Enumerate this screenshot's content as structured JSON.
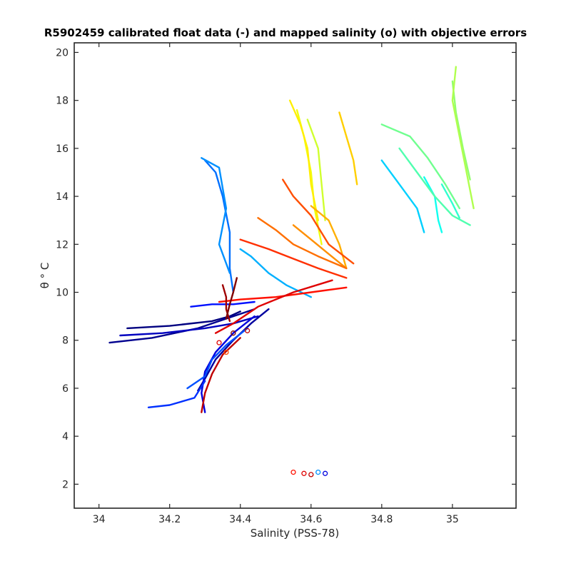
{
  "chart_data": {
    "type": "line",
    "title": "R5902459 calibrated float data (-) and mapped salinity (o) with objective errors",
    "xlabel": "Salinity (PSS-78)",
    "ylabel": "θ ° C",
    "xlim": [
      33.93,
      35.18
    ],
    "ylim": [
      1.0,
      20.4
    ],
    "x_ticks": [
      34,
      34.2,
      34.4,
      34.6,
      34.8,
      35
    ],
    "x_tick_labels": [
      "34",
      "34.2",
      "34.4",
      "34.6",
      "34.8",
      "35"
    ],
    "y_ticks": [
      2,
      4,
      6,
      8,
      10,
      12,
      14,
      16,
      18,
      20
    ],
    "y_tick_labels": [
      "2",
      "4",
      "6",
      "8",
      "10",
      "12",
      "14",
      "16",
      "18",
      "20"
    ],
    "grid": false,
    "legend": "none",
    "colormap": "jet",
    "series": [
      {
        "color": "#000080",
        "points": [
          [
            34.08,
            8.5
          ],
          [
            34.2,
            8.6
          ],
          [
            34.32,
            8.8
          ],
          [
            34.37,
            9.0
          ],
          [
            34.4,
            9.2
          ]
        ]
      },
      {
        "color": "#00008f",
        "points": [
          [
            34.03,
            7.9
          ],
          [
            34.15,
            8.1
          ],
          [
            34.28,
            8.5
          ],
          [
            34.36,
            8.9
          ],
          [
            34.44,
            9.3
          ]
        ]
      },
      {
        "color": "#00009f",
        "points": [
          [
            34.28,
            5.9
          ],
          [
            34.3,
            6.4
          ],
          [
            34.33,
            7.2
          ],
          [
            34.38,
            8.0
          ],
          [
            34.43,
            8.7
          ],
          [
            34.48,
            9.3
          ]
        ]
      },
      {
        "color": "#0000c0",
        "points": [
          [
            34.06,
            8.2
          ],
          [
            34.18,
            8.3
          ],
          [
            34.3,
            8.5
          ],
          [
            34.38,
            8.7
          ],
          [
            34.45,
            9.0
          ]
        ]
      },
      {
        "color": "#0000df",
        "points": [
          [
            34.3,
            5.0
          ],
          [
            34.29,
            5.8
          ],
          [
            34.3,
            6.7
          ],
          [
            34.33,
            7.5
          ],
          [
            34.38,
            8.3
          ],
          [
            34.44,
            9.0
          ]
        ]
      },
      {
        "color": "#0010ff",
        "points": [
          [
            34.26,
            9.4
          ],
          [
            34.32,
            9.5
          ],
          [
            34.38,
            9.5
          ],
          [
            34.44,
            9.6
          ]
        ]
      },
      {
        "color": "#0030ff",
        "points": [
          [
            34.14,
            5.2
          ],
          [
            34.2,
            5.3
          ],
          [
            34.27,
            5.6
          ],
          [
            34.3,
            6.3
          ]
        ]
      },
      {
        "color": "#0050ff",
        "points": [
          [
            34.25,
            6.0
          ],
          [
            34.3,
            6.5
          ],
          [
            34.32,
            7.2
          ],
          [
            34.36,
            7.8
          ],
          [
            34.42,
            8.5
          ]
        ]
      },
      {
        "color": "#0070ff",
        "points": [
          [
            34.3,
            15.5
          ],
          [
            34.33,
            15.0
          ],
          [
            34.35,
            14.0
          ],
          [
            34.37,
            12.5
          ],
          [
            34.37,
            11.0
          ],
          [
            34.38,
            10.0
          ]
        ]
      },
      {
        "color": "#0090ff",
        "points": [
          [
            34.29,
            15.6
          ],
          [
            34.34,
            15.2
          ],
          [
            34.36,
            13.5
          ],
          [
            34.34,
            12.0
          ],
          [
            34.37,
            10.8
          ]
        ]
      },
      {
        "color": "#00b0ff",
        "points": [
          [
            34.4,
            11.8
          ],
          [
            34.43,
            11.5
          ],
          [
            34.48,
            10.8
          ],
          [
            34.53,
            10.3
          ],
          [
            34.6,
            9.8
          ]
        ]
      },
      {
        "color": "#00d0ff",
        "points": [
          [
            34.8,
            15.5
          ],
          [
            34.85,
            14.5
          ],
          [
            34.9,
            13.5
          ],
          [
            34.92,
            12.5
          ]
        ]
      },
      {
        "color": "#10ffef",
        "points": [
          [
            34.92,
            14.8
          ],
          [
            34.95,
            14.0
          ],
          [
            34.96,
            13.0
          ],
          [
            34.97,
            12.5
          ]
        ]
      },
      {
        "color": "#30ffcf",
        "points": [
          [
            34.97,
            14.5
          ],
          [
            35.0,
            13.7
          ],
          [
            35.02,
            13.1
          ]
        ]
      },
      {
        "color": "#50ffaf",
        "points": [
          [
            34.85,
            16.0
          ],
          [
            34.9,
            15.0
          ],
          [
            34.95,
            14.0
          ],
          [
            35.0,
            13.2
          ],
          [
            35.05,
            12.8
          ]
        ]
      },
      {
        "color": "#70ff8f",
        "points": [
          [
            34.8,
            17.0
          ],
          [
            34.88,
            16.5
          ],
          [
            34.93,
            15.6
          ],
          [
            34.98,
            14.5
          ],
          [
            35.02,
            13.5
          ]
        ]
      },
      {
        "color": "#90ff6f",
        "points": [
          [
            35.0,
            18.8
          ],
          [
            35.01,
            17.5
          ],
          [
            35.03,
            16.0
          ],
          [
            35.05,
            14.7
          ]
        ]
      },
      {
        "color": "#b0ff4f",
        "points": [
          [
            35.01,
            19.4
          ],
          [
            35.0,
            18.0
          ],
          [
            35.02,
            16.5
          ],
          [
            35.04,
            15.0
          ],
          [
            35.06,
            13.5
          ]
        ]
      },
      {
        "color": "#d0ff2f",
        "points": [
          [
            34.59,
            17.2
          ],
          [
            34.62,
            16.0
          ],
          [
            34.63,
            14.5
          ],
          [
            34.64,
            13.0
          ]
        ]
      },
      {
        "color": "#efff10",
        "points": [
          [
            34.56,
            17.6
          ],
          [
            34.58,
            16.5
          ],
          [
            34.6,
            15.0
          ],
          [
            34.61,
            13.5
          ],
          [
            34.63,
            12.0
          ]
        ]
      },
      {
        "color": "#ffef00",
        "points": [
          [
            34.54,
            18.0
          ],
          [
            34.57,
            17.0
          ],
          [
            34.59,
            16.0
          ],
          [
            34.6,
            14.5
          ],
          [
            34.62,
            13.0
          ]
        ]
      },
      {
        "color": "#ffcf00",
        "points": [
          [
            34.68,
            17.5
          ],
          [
            34.7,
            16.5
          ],
          [
            34.72,
            15.5
          ],
          [
            34.73,
            14.5
          ]
        ]
      },
      {
        "color": "#ffaf00",
        "points": [
          [
            34.6,
            13.6
          ],
          [
            34.65,
            13.0
          ],
          [
            34.68,
            12.0
          ],
          [
            34.7,
            11.0
          ]
        ]
      },
      {
        "color": "#ff8f00",
        "points": [
          [
            34.55,
            12.8
          ],
          [
            34.6,
            12.2
          ],
          [
            34.65,
            11.6
          ],
          [
            34.7,
            11.0
          ]
        ]
      },
      {
        "color": "#ff6f00",
        "points": [
          [
            34.45,
            13.1
          ],
          [
            34.5,
            12.6
          ],
          [
            34.55,
            12.0
          ],
          [
            34.62,
            11.5
          ],
          [
            34.7,
            11.0
          ]
        ]
      },
      {
        "color": "#ff4f00",
        "points": [
          [
            34.52,
            14.7
          ],
          [
            34.55,
            14.0
          ],
          [
            34.6,
            13.2
          ],
          [
            34.65,
            12.0
          ],
          [
            34.72,
            11.2
          ]
        ]
      },
      {
        "color": "#ff2f00",
        "points": [
          [
            34.4,
            12.2
          ],
          [
            34.48,
            11.8
          ],
          [
            34.55,
            11.4
          ],
          [
            34.62,
            11.0
          ],
          [
            34.7,
            10.6
          ]
        ]
      },
      {
        "color": "#ff1000",
        "points": [
          [
            34.34,
            9.6
          ],
          [
            34.4,
            9.7
          ],
          [
            34.5,
            9.8
          ],
          [
            34.6,
            10.0
          ],
          [
            34.7,
            10.2
          ]
        ]
      },
      {
        "color": "#df0000",
        "points": [
          [
            34.33,
            8.3
          ],
          [
            34.38,
            8.7
          ],
          [
            34.45,
            9.4
          ],
          [
            34.55,
            10.0
          ],
          [
            34.66,
            10.5
          ]
        ]
      },
      {
        "color": "#bf0000",
        "points": [
          [
            34.29,
            5.0
          ],
          [
            34.3,
            5.8
          ],
          [
            34.32,
            6.6
          ],
          [
            34.35,
            7.4
          ],
          [
            34.4,
            8.1
          ]
        ]
      },
      {
        "color": "#9f0000",
        "points": [
          [
            34.35,
            10.3
          ],
          [
            34.36,
            9.8
          ],
          [
            34.36,
            9.3
          ],
          [
            34.37,
            8.8
          ]
        ]
      },
      {
        "color": "#800000",
        "points": [
          [
            34.39,
            10.6
          ],
          [
            34.38,
            10.0
          ],
          [
            34.37,
            9.5
          ],
          [
            34.36,
            8.9
          ]
        ]
      }
    ],
    "mapped_points": [
      {
        "x": 34.55,
        "y": 2.5,
        "color": "#ff1000"
      },
      {
        "x": 34.58,
        "y": 2.45,
        "color": "#df0000"
      },
      {
        "x": 34.6,
        "y": 2.4,
        "color": "#bf0000"
      },
      {
        "x": 34.62,
        "y": 2.5,
        "color": "#0090ff"
      },
      {
        "x": 34.64,
        "y": 2.45,
        "color": "#0000df"
      },
      {
        "x": 34.34,
        "y": 7.9,
        "color": "#df0000"
      },
      {
        "x": 34.36,
        "y": 7.5,
        "color": "#ff4f00"
      },
      {
        "x": 34.38,
        "y": 8.3,
        "color": "#800000"
      },
      {
        "x": 34.42,
        "y": 8.4,
        "color": "#bf0000"
      }
    ]
  }
}
